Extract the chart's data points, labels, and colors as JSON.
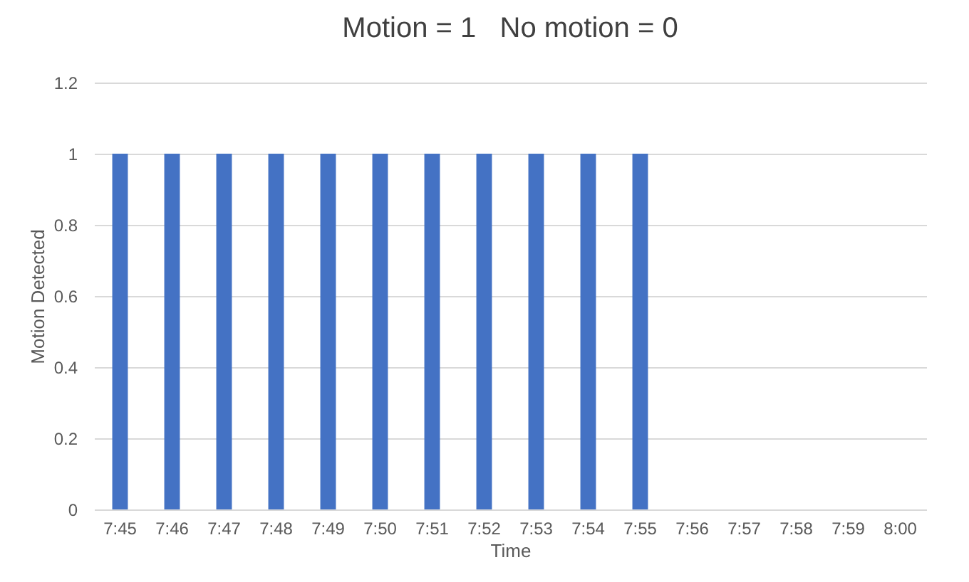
{
  "chart_data": {
    "type": "bar",
    "title": "Motion = 1   No motion = 0",
    "xlabel": "Time",
    "ylabel": "Motion Detected",
    "categories": [
      "7:45",
      "7:46",
      "7:47",
      "7:48",
      "7:49",
      "7:50",
      "7:51",
      "7:52",
      "7:53",
      "7:54",
      "7:55",
      "7:56",
      "7:57",
      "7:58",
      "7:59",
      "8:00"
    ],
    "series": [
      {
        "color": "#4472c4",
        "values": [
          1,
          1,
          1,
          1,
          1,
          1,
          1,
          1,
          1,
          1,
          1,
          0,
          0,
          0,
          0,
          0
        ]
      }
    ],
    "ylim": [
      0,
      1.2
    ],
    "yticks": [
      0,
      0.2,
      0.4,
      0.6,
      0.8,
      1,
      1.2
    ],
    "grid": "y"
  }
}
